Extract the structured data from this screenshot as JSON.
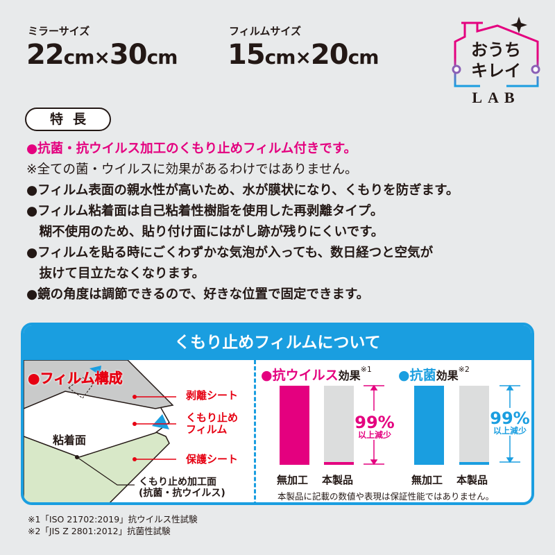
{
  "sizes": [
    {
      "label": "ミラーサイズ",
      "value_a": "22",
      "unit_a": "cm",
      "times": "×",
      "value_b": "30",
      "unit_b": "cm"
    },
    {
      "label": "フィルムサイズ",
      "value_a": "15",
      "unit_a": "cm",
      "times": "×",
      "value_b": "20",
      "unit_b": "cm"
    }
  ],
  "logo": {
    "line1": "おうち",
    "line2": "キレイ",
    "line3": "LAB"
  },
  "features": {
    "badge": "特長",
    "lines": [
      "●抗菌・抗ウイルス加工のくもり止めフィルム付きです。",
      "※全ての菌・ウイルスに効果があるわけではありません。",
      "●フィルム表面の親水性が高いため、水が膜状になり、くもりを防ぎます。",
      "●フィルム粘着面は自己粘着性樹脂を使用した再剥離タイプ。",
      "　糊不使用のため、貼り付け面にはがし跡が残りにくいです。",
      "●フィルムを貼る時にごくわずかな気泡が入っても、数日経つと空気が",
      "　抜けて目立たなくなります。",
      "●鏡の角度は調節できるので、好きな位置で固定できます。"
    ]
  },
  "panel": {
    "title": "くもり止めフィルムについて",
    "structure": {
      "title": "●フィルム構成",
      "layers": [
        "剥離シート",
        "くもり止め\nフィルム",
        "保護シート"
      ],
      "adhesive": "粘着面",
      "surface_line1": "くもり止め加工面",
      "surface_line2": "(抗菌・抗ウイルス)"
    },
    "antivirus": {
      "title_color": "●抗ウイルス",
      "title_rest": "効果",
      "note": "※1",
      "untreated": "無加工",
      "product": "本製品",
      "percent": "99%",
      "reduction": "以上減少",
      "color": "#e4007f",
      "untreated_level": 100,
      "product_level": 1
    },
    "antibacterial": {
      "title_color": "●抗菌",
      "title_rest": "効果",
      "note": "※2",
      "untreated": "無加工",
      "product": "本製品",
      "percent": "99%",
      "reduction": "以上減少",
      "color": "#1a9ee0",
      "untreated_level": 100,
      "product_level": 1
    },
    "disclaimer": "本製品に記載の数値や表現は保証性能ではありません。"
  },
  "footnotes": [
    "※1「ISO 21702:2019」抗ウイルス性試験",
    "※2「JIS Z 2801:2012」抗菌性試験"
  ]
}
